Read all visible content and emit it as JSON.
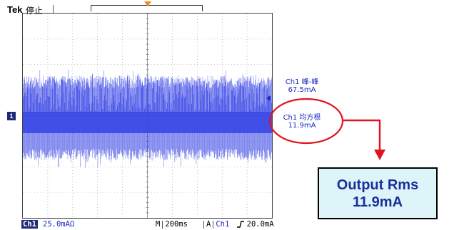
{
  "header": {
    "brand": "Tek",
    "run_state": "停止"
  },
  "channel_marker": "1",
  "measurements": {
    "pkpk_label": "Ch1 峰-峰",
    "pkpk_value": "67.5mA",
    "rms_label": "Ch1 均方根",
    "rms_value": "11.9mA"
  },
  "callout": {
    "line1": "Output Rms",
    "line2": "11.9mA"
  },
  "status": {
    "channel_badge": "Ch1",
    "vertical_scale": "25.0mAΩ",
    "time_prefix": "M",
    "timebase": "200ms",
    "trigger_prefix": "A",
    "trigger_channel": "Ch1",
    "trigger_slope_icon": "rising-edge",
    "trigger_level": "20.0mA"
  },
  "colors": {
    "waveform": "#3a47e6",
    "annotation": "#e0141e",
    "callout_bg": "#ddf4f9"
  }
}
